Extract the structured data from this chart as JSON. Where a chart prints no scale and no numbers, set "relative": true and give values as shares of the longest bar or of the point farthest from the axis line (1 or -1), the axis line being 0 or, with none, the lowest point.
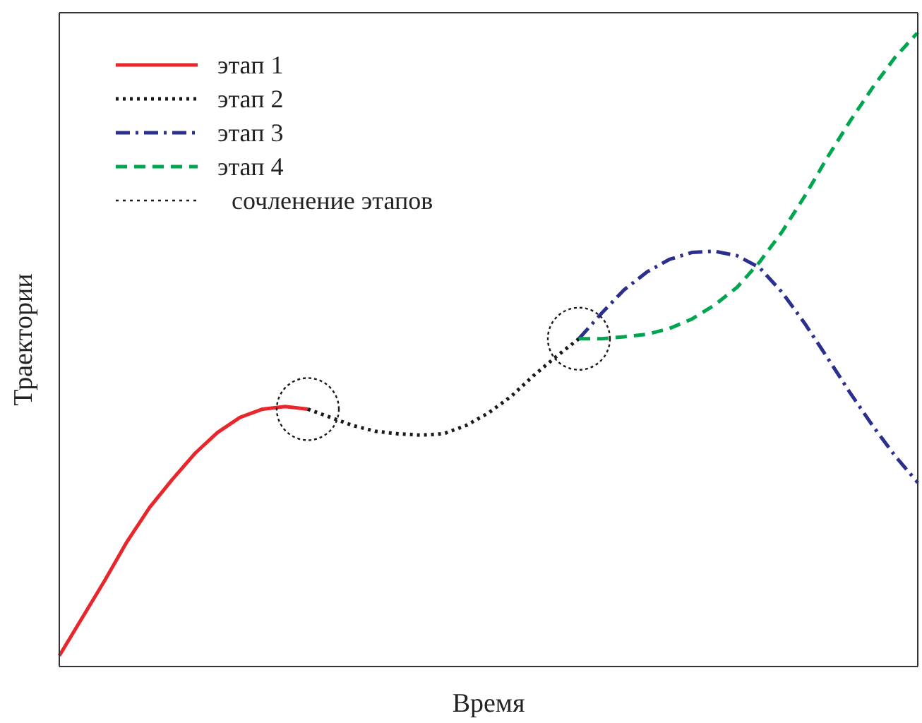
{
  "chart_data": {
    "type": "line",
    "relative": true,
    "xlabel": "Время",
    "ylabel": "Траектории",
    "legend": "top left",
    "annotations": [
      "сочленение этапов"
    ],
    "categories": [
      null,
      null,
      null,
      null,
      null,
      null,
      null,
      null,
      null,
      null,
      null,
      null,
      null,
      null,
      null,
      null,
      null,
      null,
      null,
      null,
      null,
      null,
      null,
      null,
      null,
      null,
      null,
      null,
      null,
      null,
      null,
      null,
      null,
      null,
      null,
      null,
      null,
      null,
      null
    ],
    "series": [
      {
        "name": "этап 1",
        "color": "#e8262b",
        "line_style": "solid",
        "values": [
          0.017,
          0.076,
          0.135,
          0.197,
          0.251,
          0.295,
          0.336,
          0.369,
          0.393,
          0.406,
          0.41,
          0.406,
          null,
          null,
          null,
          null,
          null,
          null,
          null,
          null,
          null,
          null,
          null,
          null,
          null,
          null,
          null,
          null,
          null,
          null,
          null,
          null,
          null,
          null,
          null,
          null,
          null,
          null,
          null
        ]
      },
      {
        "name": "этап 2",
        "color": "#1a1a1a",
        "line_style": "dotted",
        "values": [
          null,
          null,
          null,
          null,
          null,
          null,
          null,
          null,
          null,
          null,
          null,
          0.406,
          0.393,
          0.38,
          0.371,
          0.367,
          0.365,
          0.367,
          0.38,
          0.4,
          0.426,
          0.459,
          0.489,
          0.517,
          null,
          null,
          null,
          null,
          null,
          null,
          null,
          null,
          null,
          null,
          null,
          null,
          null,
          null,
          null
        ]
      },
      {
        "name": "этап 3",
        "color": "#2b2f8e",
        "line_style": "dashdot",
        "values": [
          null,
          null,
          null,
          null,
          null,
          null,
          null,
          null,
          null,
          null,
          null,
          null,
          null,
          null,
          null,
          null,
          null,
          null,
          null,
          null,
          null,
          null,
          null,
          0.517,
          0.557,
          0.594,
          0.622,
          0.642,
          0.653,
          0.655,
          0.648,
          0.629,
          0.59,
          0.541,
          0.487,
          0.432,
          0.38,
          0.332,
          0.29
        ]
      },
      {
        "name": "этап 4",
        "color": "#00a64f",
        "line_style": "dashed",
        "values": [
          null,
          null,
          null,
          null,
          null,
          null,
          null,
          null,
          null,
          null,
          null,
          null,
          null,
          null,
          null,
          null,
          null,
          null,
          null,
          null,
          null,
          null,
          null,
          0.517,
          0.517,
          0.52,
          0.524,
          0.533,
          0.548,
          0.57,
          0.598,
          0.638,
          0.686,
          0.742,
          0.803,
          0.86,
          0.913,
          0.961,
          1
        ]
      }
    ]
  }
}
